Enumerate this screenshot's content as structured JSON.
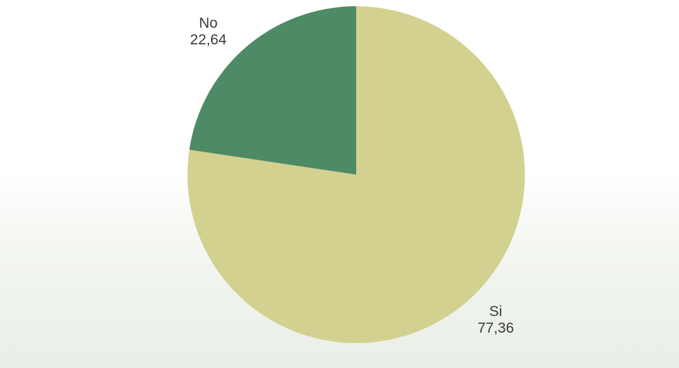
{
  "chart_data": {
    "type": "pie",
    "slices": [
      {
        "label": "Si",
        "value": 77.36,
        "value_text": "77,36",
        "color": "#d3d18f"
      },
      {
        "label": "No",
        "value": 22.64,
        "value_text": "22,64",
        "color": "#4e8a65"
      }
    ],
    "start_angle": "12 o'clock",
    "direction": "clockwise",
    "legend": "none",
    "title": ""
  }
}
